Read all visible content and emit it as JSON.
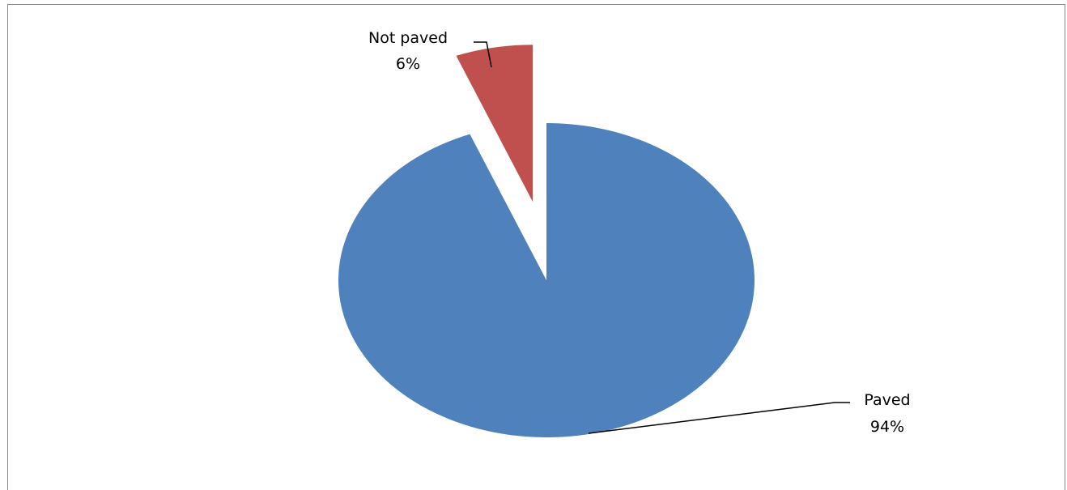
{
  "chart_data": {
    "type": "pie",
    "title": "",
    "slices": [
      {
        "label": "Paved",
        "value": 94,
        "value_label": "94%",
        "color": "#4F81BD",
        "exploded": false
      },
      {
        "label": "Not paved",
        "value": 6,
        "value_label": "6%",
        "color": "#C0504D",
        "exploded": true
      }
    ],
    "start_angle_deg": 0,
    "direction": "clockwise",
    "legend": "none",
    "data_labels": "category name and percentage, with leader lines"
  }
}
